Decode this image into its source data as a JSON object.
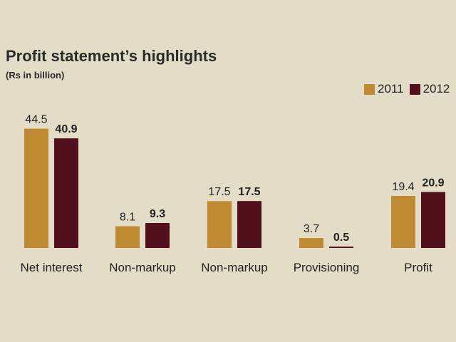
{
  "chart_data": {
    "type": "bar",
    "title": "Profit statement’s  highlights",
    "subtitle": "(Rs in billion)",
    "categories": [
      "Net interest",
      "Non-markup",
      "Non-markup",
      "Provisioning",
      "Profit"
    ],
    "series": [
      {
        "name": "2011",
        "color": "#bf8a32",
        "values": [
          44.5,
          8.1,
          17.5,
          3.7,
          19.4
        ],
        "labels": [
          "44.5",
          "8.1",
          "17.5",
          "3.7",
          "19.4"
        ]
      },
      {
        "name": "2012",
        "color": "#52101c",
        "values": [
          40.9,
          9.3,
          17.5,
          0.5,
          20.9
        ],
        "labels": [
          "40.9",
          "9.3",
          "17.5",
          "0.5",
          "20.9"
        ]
      }
    ],
    "ylim": [
      0,
      46
    ],
    "grid": false,
    "legend_position": "top-right"
  }
}
